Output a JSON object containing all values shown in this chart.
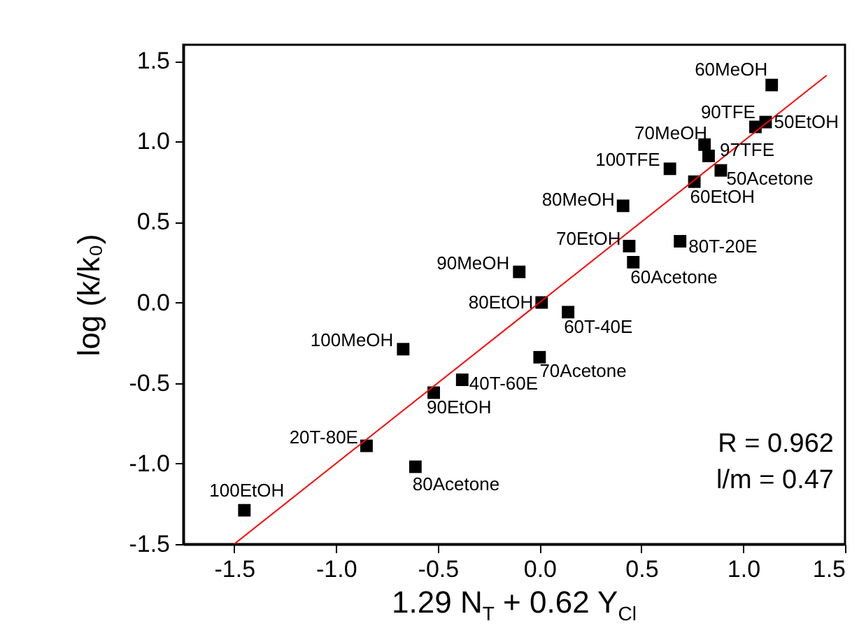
{
  "chart_data": {
    "type": "scatter",
    "xlabel": "1.29 N$_{T}$ + 0.62 Y$_{Cl}$",
    "ylabel": "log (k/k₀)",
    "xlim": [
      -1.75,
      1.5
    ],
    "ylim": [
      -1.5,
      1.6
    ],
    "xticks": [
      {
        "value": -1.5,
        "label": "-1.5"
      },
      {
        "value": -1,
        "label": "-1.0"
      },
      {
        "value": -0.5,
        "label": "-0.5"
      },
      {
        "value": 0,
        "label": "0.0"
      },
      {
        "value": 0.5,
        "label": "0.5"
      },
      {
        "value": 1,
        "label": "1.0"
      },
      {
        "value": 1.5,
        "label": "1.5"
      }
    ],
    "yticks": [
      {
        "value": -1.5,
        "label": "-1.5"
      },
      {
        "value": -1,
        "label": "-1.0"
      },
      {
        "value": -0.5,
        "label": "-0.5"
      },
      {
        "value": 0,
        "label": "0.0"
      },
      {
        "value": 0.5,
        "label": "0.5"
      },
      {
        "value": 1,
        "label": "1.0"
      },
      {
        "value": 1.5,
        "label": "1.5"
      }
    ],
    "series": [
      {
        "marker": "square",
        "color": "#000000",
        "x": [
          1.14,
          1.06,
          1.11,
          0.81,
          0.83,
          0.64,
          0.89,
          0.76,
          0.41,
          0.44,
          0.69,
          0.46,
          -0.1,
          0.01,
          0.14,
          -0.67,
          0.0,
          -0.38,
          -0.52,
          -0.85,
          -0.61,
          -1.45
        ],
        "values": [
          1.35,
          1.09,
          1.12,
          0.98,
          0.91,
          0.83,
          0.82,
          0.75,
          0.6,
          0.35,
          0.38,
          0.25,
          0.19,
          0.0,
          -0.06,
          -0.29,
          -0.34,
          -0.48,
          -0.56,
          -0.89,
          -1.02,
          -1.29
        ]
      },
      {
        "type": "line",
        "color": "#ff0000",
        "x": [
          -1.5,
          1.41
        ],
        "values": [
          -1.5,
          1.41
        ]
      }
    ],
    "annotations": [
      {
        "text": "60MeOH",
        "x": 1.14,
        "y": 1.35
      },
      {
        "text": "90TFE",
        "x": 1.06,
        "y": 1.09
      },
      {
        "text": "50EtOH",
        "x": 1.11,
        "y": 1.12
      },
      {
        "text": "70MeOH",
        "x": 0.81,
        "y": 0.98
      },
      {
        "text": "97TFE",
        "x": 0.83,
        "y": 0.91
      },
      {
        "text": "100TFE",
        "x": 0.64,
        "y": 0.83
      },
      {
        "text": "50Acetone",
        "x": 0.89,
        "y": 0.82
      },
      {
        "text": "60EtOH",
        "x": 0.76,
        "y": 0.75
      },
      {
        "text": "80MeOH",
        "x": 0.41,
        "y": 0.6
      },
      {
        "text": "70EtOH",
        "x": 0.44,
        "y": 0.35
      },
      {
        "text": "80T-20E",
        "x": 0.69,
        "y": 0.38
      },
      {
        "text": "60Acetone",
        "x": 0.46,
        "y": 0.25
      },
      {
        "text": "90MeOH",
        "x": -0.1,
        "y": 0.19
      },
      {
        "text": "80EtOH",
        "x": 0.01,
        "y": 0.0
      },
      {
        "text": "60T-40E",
        "x": 0.14,
        "y": -0.06
      },
      {
        "text": "100MeOH",
        "x": -0.67,
        "y": -0.29
      },
      {
        "text": "70Acetone",
        "x": 0.0,
        "y": -0.34
      },
      {
        "text": "40T-60E",
        "x": -0.38,
        "y": -0.48
      },
      {
        "text": "90EtOH",
        "x": -0.52,
        "y": -0.56
      },
      {
        "text": "20T-80E",
        "x": -0.85,
        "y": -0.89
      },
      {
        "text": "80Acetone",
        "x": -0.61,
        "y": -1.02
      },
      {
        "text": "100EtOH",
        "x": -1.45,
        "y": -1.29
      },
      "R = 0.962",
      "l/m = 0.47"
    ]
  }
}
